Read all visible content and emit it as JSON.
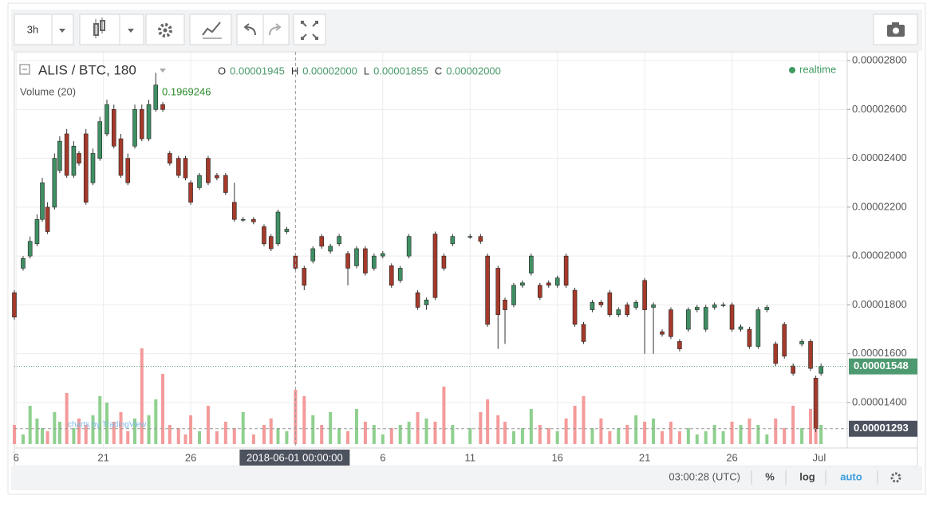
{
  "toolbar": {
    "interval": "3h"
  },
  "chart_data": {
    "type": "candlestick",
    "title": "ALIS / BTC, 180",
    "realtime_label": "realtime",
    "volume_label": "Volume (20)",
    "volume_value": 0.1969246,
    "ohlc": [
      {
        "key": "O",
        "value": 1.945e-05,
        "label": "0.00001945"
      },
      {
        "key": "H",
        "value": 2e-05,
        "label": "0.00002000"
      },
      {
        "key": "L",
        "value": 1.855e-05,
        "label": "0.00001855"
      },
      {
        "key": "C",
        "value": 2e-05,
        "label": "0.00002000"
      }
    ],
    "x": [
      -0.1,
      0.4,
      0.8,
      1.2,
      1.5,
      1.8,
      2.2,
      2.5,
      2.9,
      3.3,
      3.6,
      4.0,
      4.4,
      4.8,
      5.2,
      5.6,
      6.0,
      6.4,
      6.8,
      7.2,
      7.6,
      8.0,
      8.4,
      8.8,
      9.3,
      9.7,
      10.0,
      10.5,
      11.0,
      11.5,
      12.0,
      12.5,
      13.0,
      13.6,
      14.2,
      14.6,
      15.0,
      15.5,
      16.0,
      16.5,
      17.0,
      17.5,
      18.0,
      18.5,
      19.0,
      19.5,
      20.0,
      20.5,
      21.0,
      21.5,
      22.0,
      22.5,
      23.0,
      23.5,
      24.0,
      24.5,
      25.0,
      26.0,
      26.6,
      27.0,
      27.6,
      28.0,
      28.5,
      29.0,
      29.5,
      30.0,
      30.5,
      31.0,
      31.5,
      32.0,
      32.5,
      33.0,
      33.5,
      34.0,
      34.5,
      35.0,
      35.5,
      36.0,
      36.5,
      37.0,
      37.5,
      38.0,
      38.5,
      39.0,
      39.5,
      40.0,
      40.5,
      41.0,
      41.5,
      42.0,
      42.5,
      43.0,
      43.5,
      44.0,
      44.5,
      45.0,
      45.5,
      45.8,
      46.1
    ],
    "open": [
      1.85e-05,
      1.95e-05,
      2e-05,
      2.05e-05,
      2.15e-05,
      2.2e-05,
      2.2e-05,
      2.35e-05,
      2.5e-05,
      2.33e-05,
      2.42e-05,
      2.5e-05,
      2.3e-05,
      2.4e-05,
      2.5e-05,
      2.6e-05,
      2.48e-05,
      2.4e-05,
      2.45e-05,
      2.6e-05,
      2.48e-05,
      2.6e-05,
      2.62e-05,
      2.42e-05,
      2.4e-05,
      2.4e-05,
      2.3e-05,
      2.28e-05,
      2.4e-05,
      2.33e-05,
      2.33e-05,
      2.22e-05,
      2.15e-05,
      2.15e-05,
      2.12e-05,
      2.08e-05,
      2.05e-05,
      2.1e-05,
      2e-05,
      1.95e-05,
      1.98e-05,
      2.08e-05,
      2.02e-05,
      2.05e-05,
      2.01e-05,
      1.96e-05,
      2.03e-05,
      1.95e-05,
      2e-05,
      1.96e-05,
      1.9e-05,
      2e-05,
      1.85e-05,
      1.8e-05,
      2.09e-05,
      2e-05,
      2.05e-05,
      2.08e-05,
      2.08e-05,
      2e-05,
      1.95e-05,
      1.82e-05,
      1.8e-05,
      1.88e-05,
      1.93e-05,
      1.88e-05,
      1.89e-05,
      1.88e-05,
      2e-05,
      1.86e-05,
      1.72e-05,
      1.78e-05,
      1.81e-05,
      1.85e-05,
      1.76e-05,
      1.8e-05,
      1.79e-05,
      1.9e-05,
      1.79e-05,
      1.69e-05,
      1.78e-05,
      1.65e-05,
      1.7e-05,
      1.78e-05,
      1.7e-05,
      1.79e-05,
      1.8e-05,
      1.8e-05,
      1.7e-05,
      1.7e-05,
      1.63e-05,
      1.78e-05,
      1.64e-05,
      1.72e-05,
      1.55e-05,
      1.64e-05,
      1.65e-05,
      1.5e-05,
      1.52e-05
    ],
    "high": [
      1.86e-05,
      2e-05,
      2.08e-05,
      2.17e-05,
      2.32e-05,
      2.22e-05,
      2.42e-05,
      2.49e-05,
      2.52e-05,
      2.47e-05,
      2.43e-05,
      2.52e-05,
      2.44e-05,
      2.57e-05,
      2.64e-05,
      2.62e-05,
      2.5e-05,
      2.42e-05,
      2.62e-05,
      2.62e-05,
      2.64e-05,
      2.75e-05,
      2.63e-05,
      2.43e-05,
      2.41e-05,
      2.41e-05,
      2.31e-05,
      2.34e-05,
      2.41e-05,
      2.34e-05,
      2.34e-05,
      2.3e-05,
      2.16e-05,
      2.16e-05,
      2.13e-05,
      2.09e-05,
      2.19e-05,
      2.12e-05,
      2.01e-05,
      1.96e-05,
      2.04e-05,
      2.09e-05,
      2.05e-05,
      2.09e-05,
      2.02e-05,
      2.04e-05,
      2.04e-05,
      2.01e-05,
      2.02e-05,
      1.97e-05,
      1.96e-05,
      2.09e-05,
      1.86e-05,
      1.83e-05,
      2.1e-05,
      2.01e-05,
      2.09e-05,
      2.09e-05,
      2.09e-05,
      2.01e-05,
      1.96e-05,
      1.83e-05,
      1.89e-05,
      1.9e-05,
      2.01e-05,
      1.89e-05,
      1.9e-05,
      1.92e-05,
      2.01e-05,
      1.87e-05,
      1.73e-05,
      1.82e-05,
      1.82e-05,
      1.86e-05,
      1.79e-05,
      1.81e-05,
      1.82e-05,
      1.91e-05,
      1.81e-05,
      1.7e-05,
      1.79e-05,
      1.66e-05,
      1.79e-05,
      1.8e-05,
      1.8e-05,
      1.81e-05,
      1.81e-05,
      1.81e-05,
      1.72e-05,
      1.71e-05,
      1.79e-05,
      1.8e-05,
      1.65e-05,
      1.73e-05,
      1.56e-05,
      1.66e-05,
      1.66e-05,
      1.51e-05,
      1.56e-05
    ],
    "low": [
      1.74e-05,
      1.94e-05,
      1.99e-05,
      2.04e-05,
      2.14e-05,
      2.09e-05,
      2.19e-05,
      2.34e-05,
      2.32e-05,
      2.32e-05,
      2.37e-05,
      2.21e-05,
      2.29e-05,
      2.39e-05,
      2.49e-05,
      2.44e-05,
      2.32e-05,
      2.29e-05,
      2.44e-05,
      2.47e-05,
      2.47e-05,
      2.59e-05,
      2.59e-05,
      2.37e-05,
      2.32e-05,
      2.31e-05,
      2.21e-05,
      2.27e-05,
      2.29e-05,
      2.31e-05,
      2.25e-05,
      2.14e-05,
      2.14e-05,
      2.13e-05,
      2.04e-05,
      2.02e-05,
      2.04e-05,
      2.09e-05,
      1.94e-05,
      1.86e-05,
      1.97e-05,
      2.03e-05,
      2.01e-05,
      2.04e-05,
      1.88e-05,
      1.95e-05,
      1.92e-05,
      1.94e-05,
      1.99e-05,
      1.87e-05,
      1.89e-05,
      1.99e-05,
      1.78e-05,
      1.78e-05,
      1.82e-05,
      1.94e-05,
      2.04e-05,
      2.07e-05,
      2.05e-05,
      1.71e-05,
      1.62e-05,
      1.64e-05,
      1.79e-05,
      1.87e-05,
      1.92e-05,
      1.82e-05,
      1.87e-05,
      1.87e-05,
      1.87e-05,
      1.71e-05,
      1.64e-05,
      1.77e-05,
      1.79e-05,
      1.75e-05,
      1.75e-05,
      1.75e-05,
      1.78e-05,
      1.6e-05,
      1.6e-05,
      1.67e-05,
      1.66e-05,
      1.61e-05,
      1.69e-05,
      1.77e-05,
      1.69e-05,
      1.78e-05,
      1.79e-05,
      1.69e-05,
      1.69e-05,
      1.62e-05,
      1.62e-05,
      1.77e-05,
      1.55e-05,
      1.58e-05,
      1.51e-05,
      1.63e-05,
      1.53e-05,
      1.28e-05,
      1.51e-05
    ],
    "close": [
      1.75e-05,
      1.99e-05,
      2.06e-05,
      2.15e-05,
      2.3e-05,
      2.1e-05,
      2.4e-05,
      2.47e-05,
      2.33e-05,
      2.45e-05,
      2.38e-05,
      2.22e-05,
      2.42e-05,
      2.55e-05,
      2.62e-05,
      2.45e-05,
      2.33e-05,
      2.3e-05,
      2.6e-05,
      2.48e-05,
      2.62e-05,
      2.7e-05,
      2.6e-05,
      2.38e-05,
      2.33e-05,
      2.32e-05,
      2.22e-05,
      2.33e-05,
      2.3e-05,
      2.32e-05,
      2.26e-05,
      2.15e-05,
      2.15e-05,
      2.14e-05,
      2.05e-05,
      2.03e-05,
      2.18e-05,
      2.11e-05,
      1.95e-05,
      1.88e-05,
      2.03e-05,
      2.04e-05,
      2.04e-05,
      2.08e-05,
      1.95e-05,
      2.03e-05,
      1.93e-05,
      2e-05,
      2.01e-05,
      1.88e-05,
      1.95e-05,
      2.08e-05,
      1.79e-05,
      1.82e-05,
      1.83e-05,
      1.95e-05,
      2.08e-05,
      2.08e-05,
      2.06e-05,
      1.72e-05,
      1.76e-05,
      1.78e-05,
      1.88e-05,
      1.89e-05,
      2e-05,
      1.83e-05,
      1.88e-05,
      1.91e-05,
      1.88e-05,
      1.72e-05,
      1.65e-05,
      1.81e-05,
      1.8e-05,
      1.76e-05,
      1.78e-05,
      1.76e-05,
      1.81e-05,
      1.78e-05,
      1.8e-05,
      1.68e-05,
      1.67e-05,
      1.62e-05,
      1.78e-05,
      1.79e-05,
      1.79e-05,
      1.8e-05,
      1.8e-05,
      1.7e-05,
      1.71e-05,
      1.63e-05,
      1.78e-05,
      1.79e-05,
      1.56e-05,
      1.59e-05,
      1.52e-05,
      1.65e-05,
      1.54e-05,
      1.293e-05,
      1.548e-05
    ],
    "volume": [
      0.6,
      0.3,
      1.2,
      0.8,
      0.5,
      0.4,
      1.0,
      0.7,
      1.6,
      0.5,
      0.8,
      0.6,
      0.9,
      1.5,
      1.3,
      0.7,
      1.0,
      0.4,
      0.8,
      3.0,
      0.9,
      1.4,
      2.2,
      0.6,
      0.5,
      0.3,
      0.9,
      0.4,
      1.2,
      0.4,
      0.7,
      0.5,
      1.0,
      0.3,
      0.6,
      0.8,
      0.5,
      0.4,
      1.7,
      1.5,
      0.9,
      0.6,
      1.0,
      0.5,
      0.4,
      1.1,
      0.7,
      0.6,
      0.3,
      0.5,
      0.6,
      0.7,
      1.0,
      0.8,
      0.7,
      1.8,
      0.6,
      0.5,
      1.0,
      1.4,
      0.9,
      0.7,
      0.4,
      0.5,
      1.1,
      0.6,
      0.5,
      0.4,
      0.8,
      1.2,
      1.5,
      0.5,
      0.8,
      0.4,
      0.5,
      0.6,
      0.9,
      0.7,
      0.8,
      0.4,
      0.7,
      0.4,
      0.5,
      0.3,
      0.4,
      0.6,
      0.4,
      0.7,
      0.6,
      0.8,
      0.6,
      0.3,
      0.8,
      0.5,
      1.2,
      0.5,
      1.1,
      1.4,
      0.6
    ],
    "up_color": "#3f8f63",
    "down_color": "#a53a2b",
    "volume_up_color": "#8fd08f",
    "volume_down_color": "#f49a9a",
    "xlim": [
      -0.1,
      47.6
    ],
    "xticks": [
      {
        "value": 0,
        "label": "6"
      },
      {
        "value": 5,
        "label": "21"
      },
      {
        "value": 10,
        "label": "26"
      },
      {
        "value": 21,
        "label": "6"
      },
      {
        "value": 26,
        "label": "11"
      },
      {
        "value": 31,
        "label": "16"
      },
      {
        "value": 36,
        "label": "21"
      },
      {
        "value": 41,
        "label": "26"
      },
      {
        "value": 46,
        "label": "Jul"
      }
    ],
    "ylim": [
      1.214e-05,
      2.836e-05
    ],
    "yticks": [
      {
        "value": 1.4e-05,
        "label": "0.00001400"
      },
      {
        "value": 1.6e-05,
        "label": "0.00001600"
      },
      {
        "value": 1.8e-05,
        "label": "0.00001800"
      },
      {
        "value": 2e-05,
        "label": "0.00002000"
      },
      {
        "value": 2.2e-05,
        "label": "0.00002200"
      },
      {
        "value": 2.4e-05,
        "label": "0.00002400"
      },
      {
        "value": 2.6e-05,
        "label": "0.00002600"
      },
      {
        "value": 2.8e-05,
        "label": "0.00002800"
      }
    ],
    "grid": true,
    "crosshair": {
      "x": {
        "value": 16,
        "label": "2018-06-01 00:00:00"
      },
      "y": {
        "value": 1.293e-05,
        "label": "0.00001293"
      }
    },
    "last_price": {
      "value": 1.548e-05,
      "label": "0.00001548"
    },
    "watermark": "charts by TradingView"
  },
  "status_bar": {
    "time": "03:00:28 (UTC)",
    "percent": "%",
    "log": "log",
    "auto": "auto"
  }
}
